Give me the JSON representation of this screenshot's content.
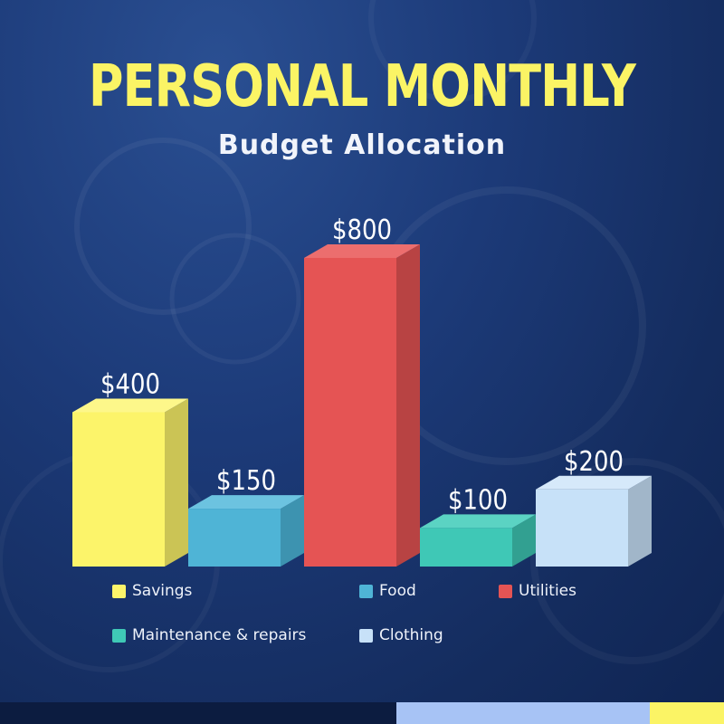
{
  "title": "PERSONAL MONTHLY",
  "subtitle": "Budget Allocation",
  "chart_data": {
    "type": "bar",
    "categories": [
      "Savings",
      "Food",
      "Utilities",
      "Maintenance & repairs",
      "Clothing"
    ],
    "values": [
      400,
      150,
      800,
      100,
      200
    ],
    "data_labels": [
      "$400",
      "$150",
      "$800",
      "$100",
      "$200"
    ],
    "colors": [
      "#fcf46a",
      "#4fb4d6",
      "#e55454",
      "#3fc8b6",
      "#c7e1f8"
    ],
    "side_colors": [
      "#cbc455",
      "#3d93b0",
      "#b84343",
      "#32a091",
      "#a1b6c9"
    ],
    "top_colors": [
      "#fdf78a",
      "#6cc3e0",
      "#ec6e6e",
      "#5bd3c3",
      "#d6e9fa"
    ],
    "style": "3d",
    "ylim": [
      0,
      800
    ],
    "grid": false,
    "legend": "bottom"
  },
  "legend": [
    {
      "label": "Savings",
      "color": "#fcf46a"
    },
    {
      "label": "Food",
      "color": "#4fb4d6"
    },
    {
      "label": "Utilities",
      "color": "#e55454"
    },
    {
      "label": "Maintenance & repairs",
      "color": "#3fc8b6"
    },
    {
      "label": "Clothing",
      "color": "#c7e1f8"
    }
  ],
  "footer": {
    "colors": [
      "#0c1c40",
      "#a7c3f5",
      "#fbf465"
    ]
  }
}
